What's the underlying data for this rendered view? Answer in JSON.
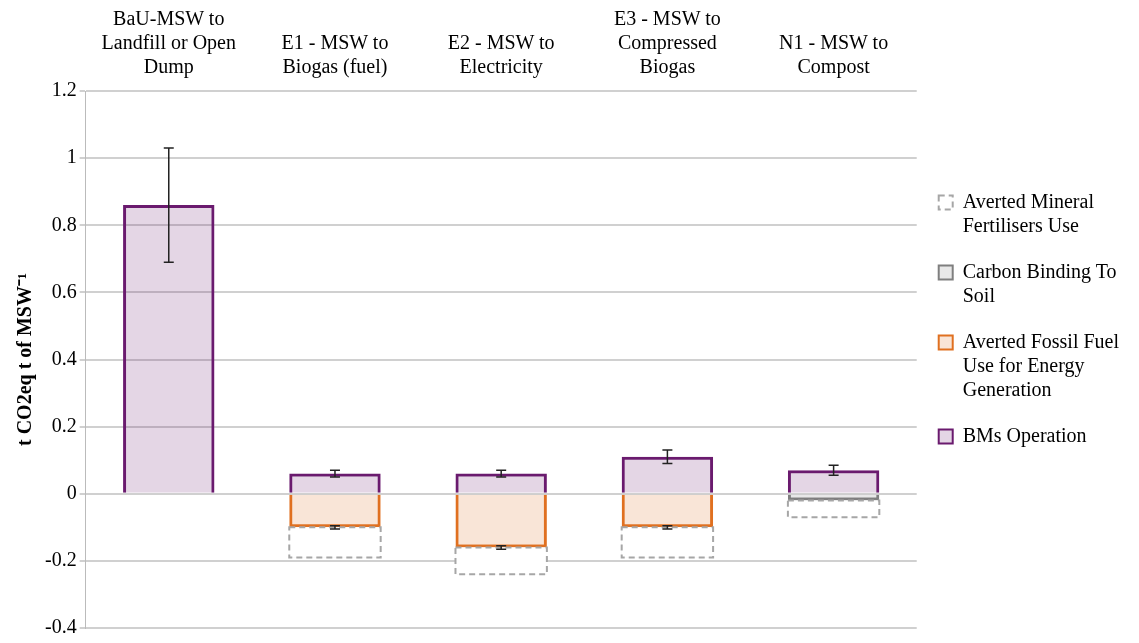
{
  "chart_data": {
    "type": "bar",
    "stacked": true,
    "ylabel": "t CO2eq t of MSW⁻¹",
    "categories": [
      "BaU-MSW to Landfill or Open Dump",
      "E1 - MSW to Biogas (fuel)",
      "E2 - MSW to Electricity",
      "E3 - MSW to Compressed Biogas",
      "N1 - MSW to Compost"
    ],
    "series": [
      {
        "name": "BMs Operation",
        "color": "#6a1a6e",
        "values": [
          0.86,
          0.06,
          0.06,
          0.11,
          0.07
        ],
        "errors": [
          [
            0.69,
            1.03
          ],
          0.01,
          0.01,
          [
            0.09,
            0.13
          ],
          [
            0.055,
            0.085
          ]
        ]
      },
      {
        "name": "Averted Fossil Fuel Use for Energy Generation",
        "color": "#e07020",
        "values": [
          null,
          -0.1,
          -0.16,
          -0.1,
          null
        ],
        "errors": [
          null,
          0.005,
          0.005,
          0.005,
          null
        ]
      },
      {
        "name": "Carbon Binding To Soil",
        "color": "#7f7f7f",
        "values": [
          null,
          null,
          null,
          null,
          -0.02
        ]
      },
      {
        "name": "Averted Mineral Fertilisers Use",
        "color": "#a6a6a6",
        "line_style": "dashed",
        "values": [
          null,
          -0.09,
          -0.08,
          -0.09,
          -0.05
        ]
      }
    ],
    "ylim": [
      -0.4,
      1.2
    ],
    "yticks": [
      -0.4,
      -0.2,
      0,
      0.2,
      0.4,
      0.6,
      0.8,
      1,
      1.2
    ],
    "grid": "y",
    "legend": "right"
  }
}
